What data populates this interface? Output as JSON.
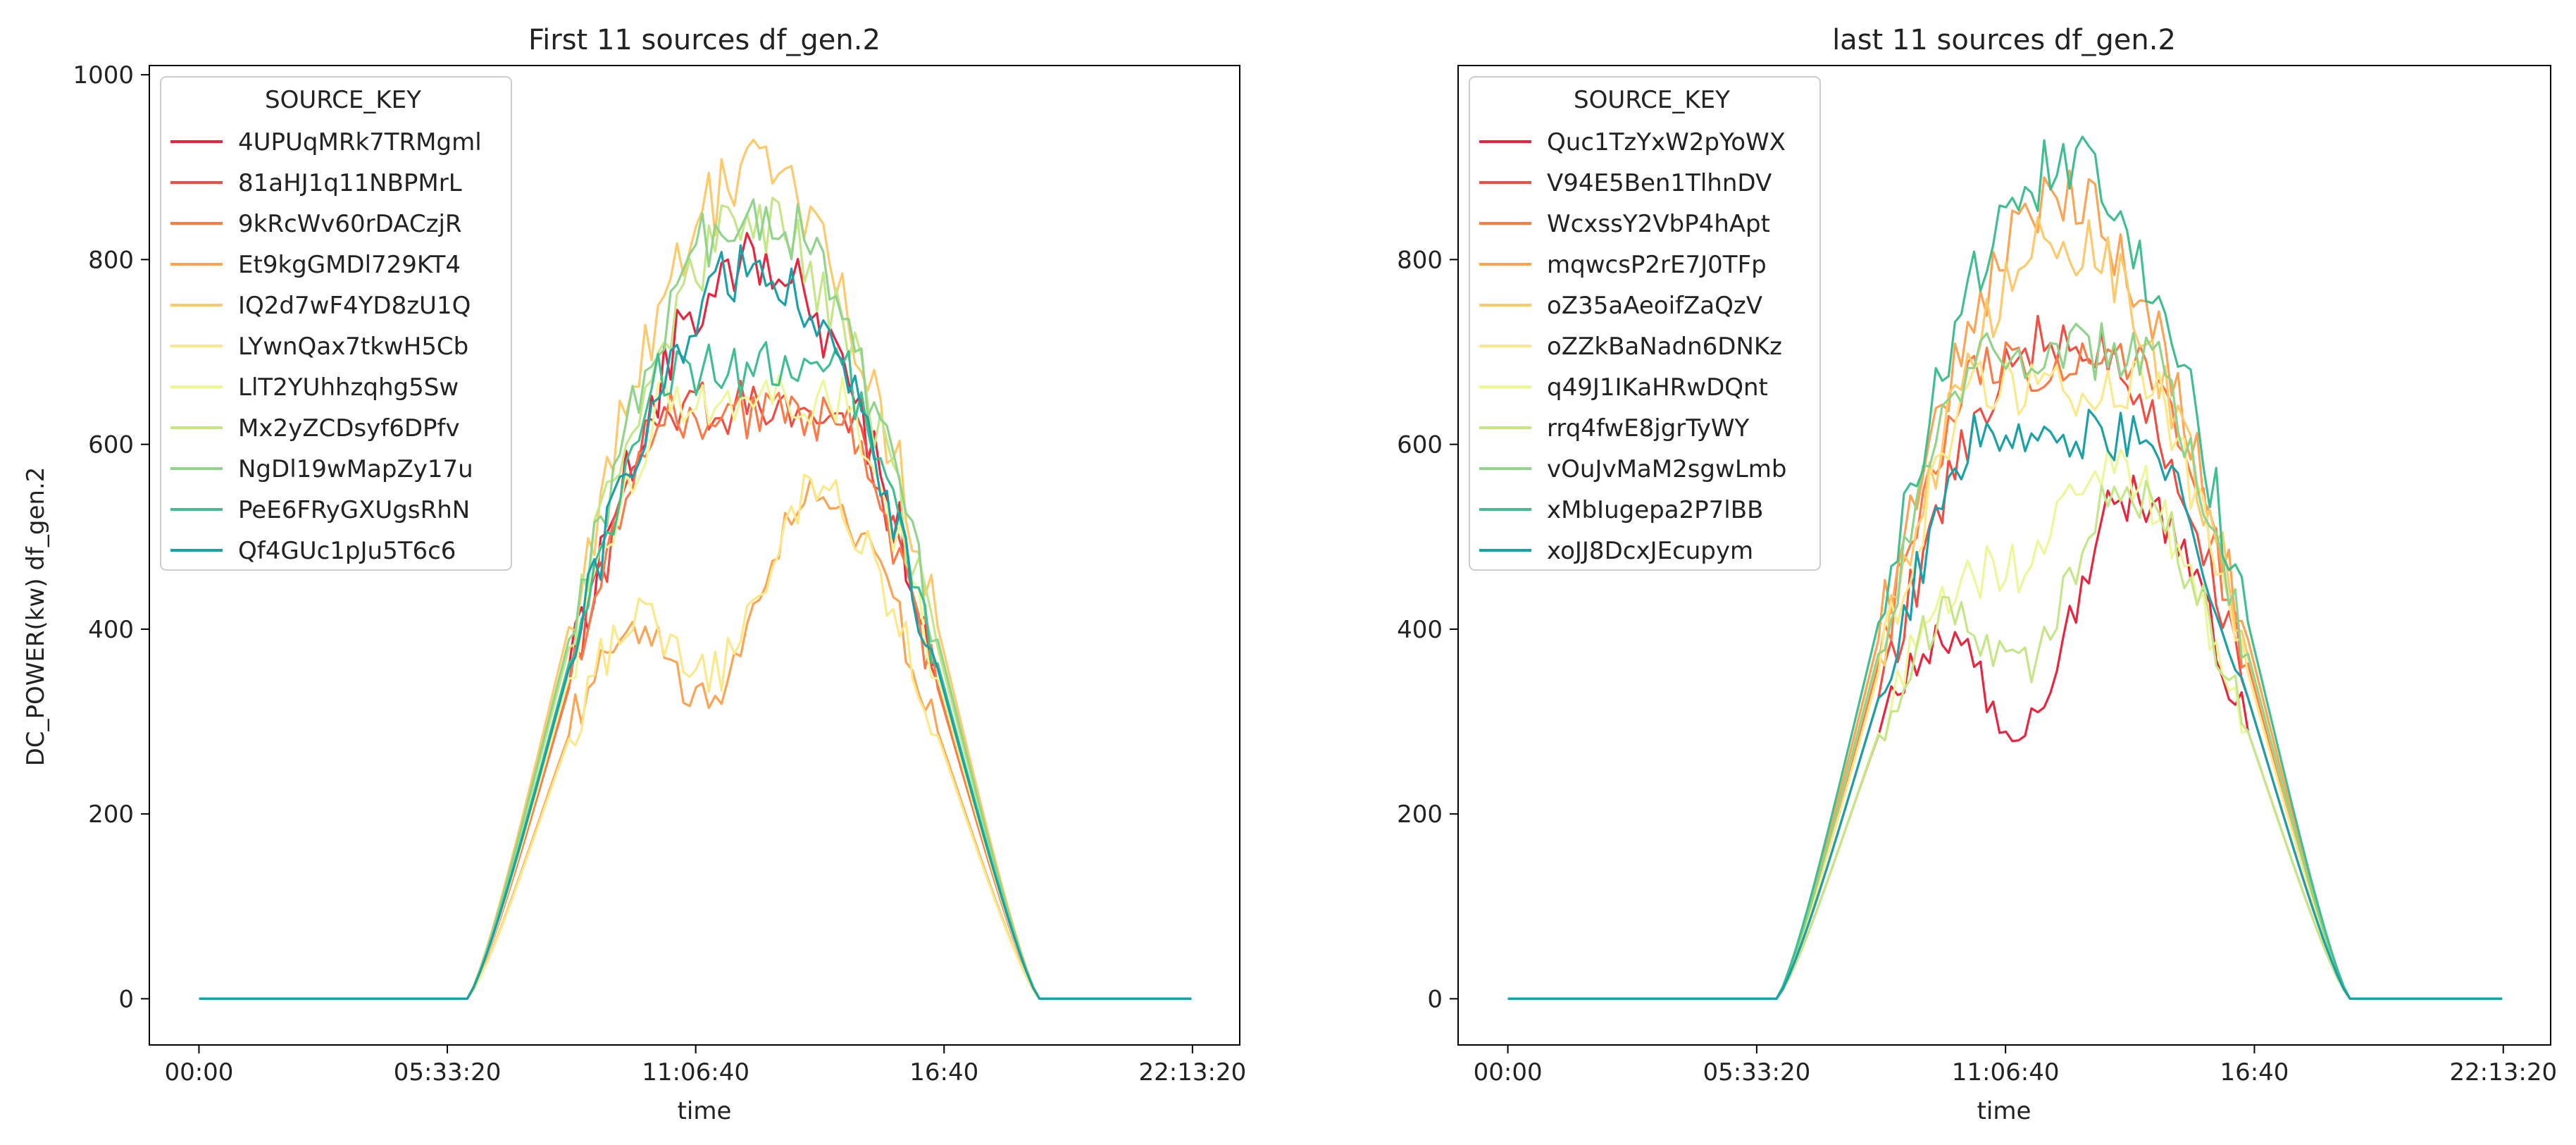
{
  "figure": {
    "ylabel": "DC_POWER(kw) df_gen.2",
    "xlabel": "time"
  },
  "legend_title": "SOURCE_KEY",
  "colors": [
    "#e8253f",
    "#f24d43",
    "#fb7a47",
    "#fca454",
    "#fdc96a",
    "#fbe889",
    "#eef798",
    "#c4e687",
    "#8fd48a",
    "#3fbf8f",
    "#1aa0a8"
  ],
  "chart_data": [
    {
      "type": "line",
      "title": "First 11 sources df_gen.2",
      "xlabel": "time",
      "ylabel": "DC_POWER(kw) df_gen.2",
      "xtick_labels": [
        "00:00",
        "05:33:20",
        "11:06:40",
        "16:40",
        "22:13:20"
      ],
      "xtick_hours": [
        0,
        5.5556,
        11.1111,
        16.6667,
        22.2222
      ],
      "xlim_hours": [
        -1.11,
        23.28
      ],
      "ylim": [
        -50,
        1010
      ],
      "yticks": [
        0,
        200,
        400,
        600,
        800,
        1000
      ],
      "series": [
        {
          "name": "4UPUqMRk7TRMgml",
          "profile": "high",
          "amp": 795,
          "dip_depth": 0
        },
        {
          "name": "81aHJ1q11NBPMrL",
          "profile": "mid",
          "amp": 640,
          "dip_depth": 0
        },
        {
          "name": "9kRcWv60rDACzjR",
          "profile": "mid",
          "amp": 630,
          "dip_depth": 0
        },
        {
          "name": "Et9kgGMDl729KT4",
          "profile": "dip",
          "amp": 640,
          "dip_depth": 300
        },
        {
          "name": "IQ2d7wF4YD8zU1Q",
          "profile": "high",
          "amp": 890,
          "dip_depth": 0
        },
        {
          "name": "LYwnQax7tkwH5Cb",
          "profile": "dip",
          "amp": 630,
          "dip_depth": 260
        },
        {
          "name": "LlT2YUhhzqhg5Sw",
          "profile": "mid",
          "amp": 650,
          "dip_depth": 0
        },
        {
          "name": "Mx2yZCDsyf6DPfv",
          "profile": "high",
          "amp": 840,
          "dip_depth": 0
        },
        {
          "name": "NgDl19wMapZy17u",
          "profile": "high",
          "amp": 860,
          "dip_depth": 0
        },
        {
          "name": "PeE6FRyGXUgsRhN",
          "profile": "mid",
          "amp": 680,
          "dip_depth": 0
        },
        {
          "name": "Qf4GUc1pJu5T6c6",
          "profile": "high",
          "amp": 790,
          "dip_depth": 0
        }
      ]
    },
    {
      "type": "line",
      "title": "last 11 sources df_gen.2",
      "xlabel": "time",
      "ylabel": "",
      "xtick_labels": [
        "00:00",
        "05:33:20",
        "11:06:40",
        "16:40",
        "22:13:20"
      ],
      "xtick_hours": [
        0,
        5.5556,
        11.1111,
        16.6667,
        22.2222
      ],
      "xlim_hours": [
        -1.11,
        23.28
      ],
      "ylim": [
        -50,
        1010
      ],
      "yticks": [
        0,
        200,
        400,
        600,
        800
      ],
      "series": [
        {
          "name": "Quc1TzYxW2pYoWX",
          "profile": "dip",
          "amp": 640,
          "dip_depth": 330
        },
        {
          "name": "V94E5Ben1TlhnDV",
          "profile": "high",
          "amp": 720,
          "dip_depth": 0
        },
        {
          "name": "WcxssY2VbP4hApt",
          "profile": "mid",
          "amp": 680,
          "dip_depth": 0
        },
        {
          "name": "mqwcsP2rE7J0TFp",
          "profile": "high",
          "amp": 860,
          "dip_depth": 0
        },
        {
          "name": "oZ35aAeoifZaQzV",
          "profile": "high",
          "amp": 820,
          "dip_depth": 0
        },
        {
          "name": "oZZkBaNadn6DNKz",
          "profile": "mid",
          "amp": 660,
          "dip_depth": 0
        },
        {
          "name": "q49J1IKaHRwDQnt",
          "profile": "dip",
          "amp": 640,
          "dip_depth": 150
        },
        {
          "name": "rrq4fwE8jgrTyWY",
          "profile": "dip",
          "amp": 640,
          "dip_depth": 270
        },
        {
          "name": "vOuJvMaM2sgwLmb",
          "profile": "mid",
          "amp": 700,
          "dip_depth": 0
        },
        {
          "name": "xMbIugepa2P7lBB",
          "profile": "high",
          "amp": 900,
          "dip_depth": 0
        },
        {
          "name": "xoJJ8DcxJEcupym",
          "profile": "mid",
          "amp": 610,
          "dip_depth": 0
        }
      ]
    }
  ]
}
